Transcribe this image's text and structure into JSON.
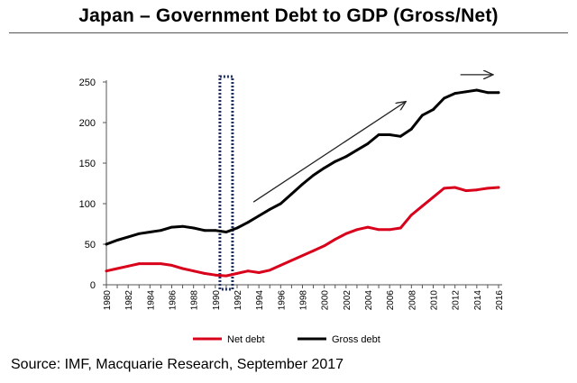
{
  "title": "Japan – Government Debt to GDP (Gross/Net)",
  "source": "Source: IMF, Macquarie Research, September 2017",
  "colors": {
    "net": "#d9001b",
    "gross": "#000000",
    "marker_box": "#1f2f5c",
    "trend_arrows": "#222222"
  },
  "annotations": {
    "highlight_box_year": 1991,
    "trend_arrows": [
      {
        "from": [
          1993.5,
          102
        ],
        "to": [
          2007.5,
          226
        ]
      },
      {
        "from": [
          2012.5,
          259
        ],
        "to": [
          2015.5,
          259
        ]
      }
    ]
  },
  "chart_data": {
    "type": "line",
    "title": "Japan – Government Debt to GDP (Gross/Net)",
    "xlabel": "",
    "ylabel": "",
    "x": [
      1980,
      1981,
      1982,
      1983,
      1984,
      1985,
      1986,
      1987,
      1988,
      1989,
      1990,
      1991,
      1992,
      1993,
      1994,
      1995,
      1996,
      1997,
      1998,
      1999,
      2000,
      2001,
      2002,
      2003,
      2004,
      2005,
      2006,
      2007,
      2008,
      2009,
      2010,
      2011,
      2012,
      2013,
      2014,
      2015,
      2016
    ],
    "xticks": [
      1980,
      1982,
      1984,
      1986,
      1988,
      1990,
      1992,
      1994,
      1996,
      1998,
      2000,
      2002,
      2004,
      2006,
      2008,
      2010,
      2012,
      2014,
      2016
    ],
    "ylim": [
      0,
      250
    ],
    "yticks": [
      0,
      50,
      100,
      150,
      200,
      250
    ],
    "grid": false,
    "legend_position": "bottom",
    "series": [
      {
        "name": "Net debt",
        "color": "#d9001b",
        "values": [
          17,
          20,
          23,
          26,
          26,
          26,
          24,
          20,
          17,
          14,
          12,
          11,
          14,
          17,
          15,
          18,
          24,
          30,
          36,
          42,
          48,
          56,
          63,
          68,
          71,
          68,
          68,
          70,
          86,
          97,
          108,
          119,
          120,
          116,
          117,
          119,
          120
        ]
      },
      {
        "name": "Gross debt",
        "color": "#000000",
        "values": [
          50,
          55,
          59,
          63,
          65,
          67,
          71,
          72,
          70,
          67,
          67,
          65,
          70,
          77,
          85,
          93,
          100,
          112,
          124,
          135,
          144,
          152,
          158,
          166,
          174,
          185,
          185,
          183,
          192,
          209,
          216,
          230,
          236,
          238,
          240,
          237,
          237
        ]
      }
    ]
  }
}
